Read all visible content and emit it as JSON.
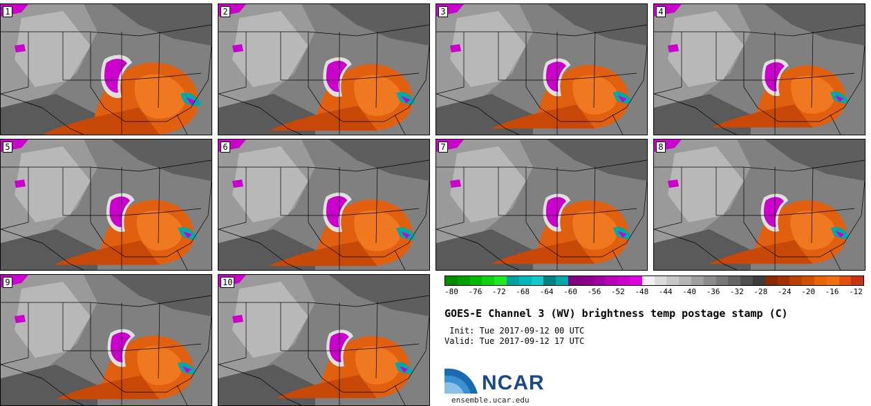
{
  "panels": [
    {
      "label": "1",
      "zoom": 1.0
    },
    {
      "label": "2",
      "zoom": 0.92
    },
    {
      "label": "3",
      "zoom": 0.88
    },
    {
      "label": "4",
      "zoom": 0.86
    },
    {
      "label": "5",
      "zoom": 0.9
    },
    {
      "label": "6",
      "zoom": 0.92
    },
    {
      "label": "7",
      "zoom": 0.88
    },
    {
      "label": "8",
      "zoom": 0.88
    },
    {
      "label": "9",
      "zoom": 0.88
    },
    {
      "label": "10",
      "zoom": 0.86
    }
  ],
  "colorbar": {
    "colors": [
      "#008a00",
      "#00a000",
      "#00b800",
      "#10d010",
      "#20e820",
      "#00a0a0",
      "#00b8b8",
      "#10c8c8",
      "#008080",
      "#00a8a8",
      "#800080",
      "#8c008c",
      "#a000a0",
      "#b800b8",
      "#cc00cc",
      "#e000e0",
      "#f0f0f0",
      "#dcdcdc",
      "#c8c8c8",
      "#b4b4b4",
      "#a0a0a0",
      "#8c8c8c",
      "#787878",
      "#646464",
      "#505050",
      "#3c3c3c",
      "#8a2800",
      "#a03000",
      "#b84000",
      "#d05000",
      "#e86400",
      "#f07010",
      "#e05010",
      "#c83010"
    ],
    "tick_labels": [
      "-80",
      "-76",
      "-72",
      "-68",
      "-64",
      "-60",
      "-56",
      "-52",
      "-48",
      "-44",
      "-40",
      "-36",
      "-32",
      "-28",
      "-24",
      "-20",
      "-16",
      "-12"
    ]
  },
  "title": "GOES-E Channel 3 (WV) brightness temp postage stamp (C)",
  "init": " Init: Tue 2017-09-12 00 UTC",
  "valid": "Valid: Tue 2017-09-12 17 UTC",
  "logo": {
    "name": "NCAR",
    "url": "ensemble.ucar.edu"
  }
}
